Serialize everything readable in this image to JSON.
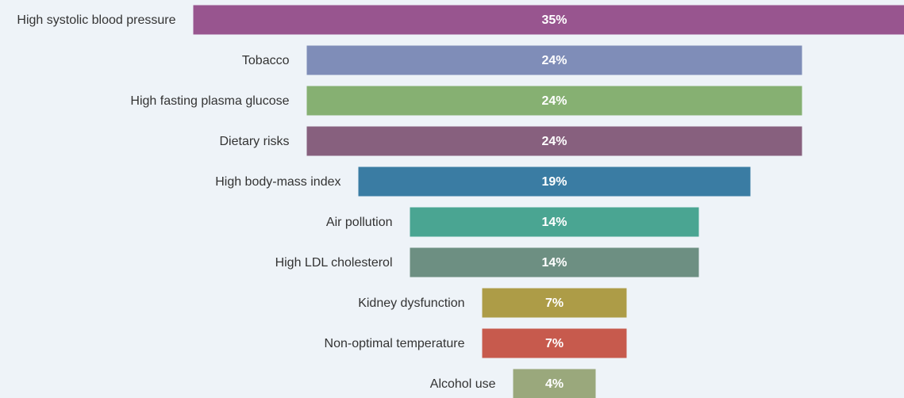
{
  "chart_data": {
    "type": "funnel",
    "categories": [
      "High systolic blood pressure",
      "Tobacco",
      "High fasting plasma glucose",
      "Dietary risks",
      "High body-mass index",
      "Air pollution",
      "High LDL cholesterol",
      "Kidney dysfunction",
      "Non-optimal temperature",
      "Alcohol use"
    ],
    "values": [
      35,
      24,
      24,
      24,
      19,
      14,
      14,
      7,
      7,
      4
    ],
    "value_labels": [
      "35%",
      "24%",
      "24%",
      "24%",
      "19%",
      "14%",
      "14%",
      "7%",
      "7%",
      "4%"
    ],
    "colors": [
      "#98558f",
      "#7f8db8",
      "#86b072",
      "#87607e",
      "#3a7ca3",
      "#4aa592",
      "#6d8f82",
      "#ad9c47",
      "#c75a4d",
      "#9aa87c"
    ]
  }
}
